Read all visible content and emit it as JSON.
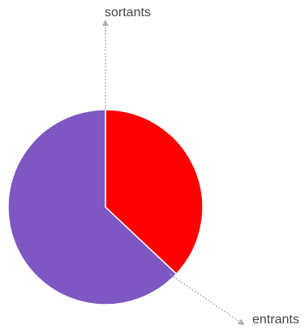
{
  "labels": {
    "sortants": "sortants",
    "entrants": "entrants"
  },
  "chart_data": {
    "type": "pie",
    "slices": [
      {
        "value": 37,
        "color": "#ff0000"
      },
      {
        "value": 63,
        "color": "#7e57c2"
      }
    ],
    "start": "top",
    "direction": "clockwise",
    "slice_border_color": "#ffffff",
    "arrow_color": "#b0b0b0"
  }
}
